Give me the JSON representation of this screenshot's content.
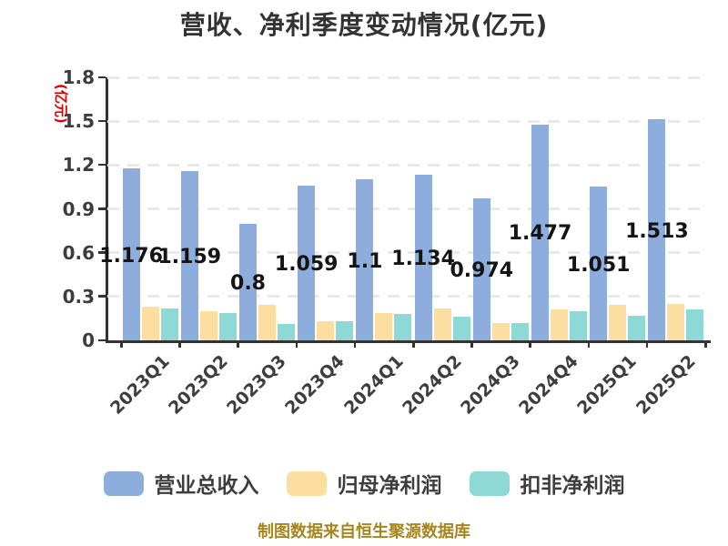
{
  "title": "营收、净利季度变动情况(亿元)",
  "caption": "制图数据来自恒生聚源数据库",
  "y_axis": {
    "unit_label": "(亿元)",
    "tick_labels": [
      "0",
      "0.3",
      "0.6",
      "0.9",
      "1.2",
      "1.5",
      "1.8"
    ],
    "unit_color": "#e60000"
  },
  "chart_data": {
    "type": "bar",
    "title": "营收、净利季度变动情况(亿元)",
    "xlabel": "",
    "ylabel": "(亿元)",
    "ylim": [
      0,
      1.8
    ],
    "grid": "horizontal dashed",
    "legend_position": "bottom",
    "categories": [
      "2023Q1",
      "2023Q2",
      "2023Q3",
      "2023Q4",
      "2024Q1",
      "2024Q2",
      "2024Q3",
      "2024Q4",
      "2025Q1",
      "2025Q2"
    ],
    "series": [
      {
        "name": "营业总收入",
        "color": "#8DAEDC",
        "values": [
          1.176,
          1.159,
          0.8,
          1.059,
          1.1,
          1.134,
          0.974,
          1.477,
          1.051,
          1.513
        ],
        "value_labels": [
          "1.176",
          "1.159",
          "0.8",
          "1.059",
          "1.1",
          "1.134",
          "0.974",
          "1.477",
          "1.051",
          "1.513"
        ]
      },
      {
        "name": "归母净利润",
        "color": "#FCDFA0",
        "values": [
          0.23,
          0.2,
          0.24,
          0.13,
          0.19,
          0.22,
          0.12,
          0.21,
          0.24,
          0.25
        ]
      },
      {
        "name": "扣非净利润",
        "color": "#8ED8D5",
        "values": [
          0.22,
          0.19,
          0.11,
          0.13,
          0.18,
          0.16,
          0.12,
          0.2,
          0.17,
          0.21
        ]
      }
    ]
  },
  "legend": {
    "items": [
      {
        "label": "营业总收入",
        "color": "#8DAEDC"
      },
      {
        "label": "归母净利润",
        "color": "#FCDFA0"
      },
      {
        "label": "扣非净利润",
        "color": "#8ED8D5"
      }
    ]
  }
}
